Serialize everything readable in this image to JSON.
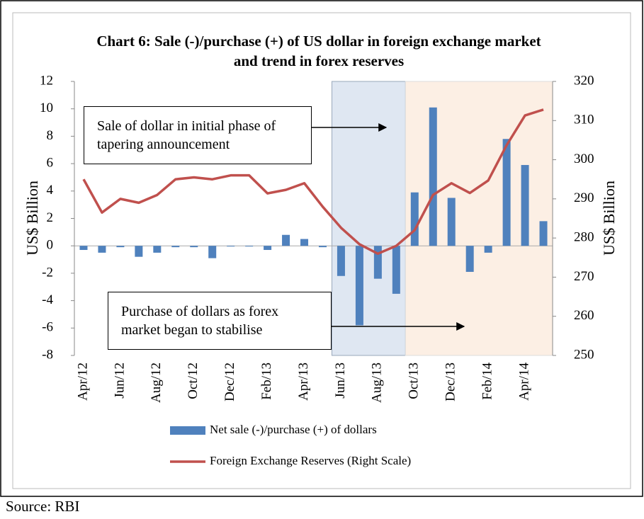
{
  "chart_data": {
    "type": "combo",
    "title": "Chart 6: Sale (-)/purchase (+) of US dollar in foreign exchange market and trend in forex reserves",
    "y_label": "US$ Billion",
    "y2_label": "US$ Billion",
    "categories": [
      "Apr/12",
      null,
      "Jun/12",
      null,
      "Aug/12",
      null,
      "Oct/12",
      null,
      "Dec/12",
      null,
      "Feb/13",
      null,
      "Apr/13",
      null,
      "Jun/13",
      null,
      "Aug/13",
      null,
      "Oct/13",
      null,
      "Dec/13",
      null,
      "Feb/14",
      null,
      "Apr/14",
      null
    ],
    "series": [
      {
        "name": "Net sale (-)/purchase (+) of dollars",
        "type": "bar",
        "color": "#4f81bd",
        "values": [
          -0.3,
          -0.5,
          -0.1,
          -0.8,
          -0.5,
          -0.1,
          -0.1,
          -0.9,
          -0.05,
          -0.05,
          -0.3,
          0.8,
          0.5,
          -0.1,
          -2.2,
          -5.8,
          -2.4,
          -3.5,
          3.9,
          10.1,
          3.5,
          -1.9,
          -0.5,
          7.8,
          5.9,
          1.8
        ]
      },
      {
        "name": "Foreign Exchange Reserves (Right Scale)",
        "type": "line",
        "axis": "y2",
        "color": "#c0504d",
        "values": [
          295,
          286.5,
          290,
          289,
          291,
          295,
          295.5,
          295,
          296,
          296,
          291.4,
          292.3,
          294,
          288,
          282.6,
          278.4,
          276,
          278,
          282,
          291,
          294,
          291.5,
          294.7,
          303.7,
          311.3,
          312.8
        ]
      }
    ],
    "ylim": [
      -8,
      12
    ],
    "yticks": [
      -8,
      -6,
      -4,
      -2,
      0,
      2,
      4,
      6,
      8,
      10,
      12
    ],
    "y2lim": [
      250,
      320
    ],
    "y2ticks": [
      250,
      260,
      270,
      280,
      290,
      300,
      310,
      320
    ],
    "annotations": [
      "Sale of dollar in initial phase of tapering announcement",
      "Purchase of dollars as forex market began to stabilise"
    ],
    "source": "Source: RBI"
  }
}
